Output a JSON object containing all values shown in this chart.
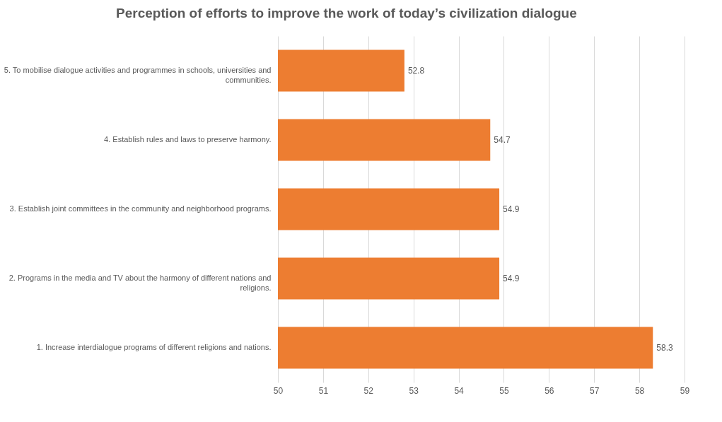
{
  "chart_data": {
    "type": "bar",
    "orientation": "horizontal",
    "title": "Perception of efforts to improve the work of today’s civilization dialogue",
    "categories": [
      "5. To mobilise dialogue activities and programmes in schools, universities and communities.",
      "4. Establish rules and laws to preserve harmony.",
      "3. Establish joint committees in the community and neighborhood programs.",
      "2. Programs in the media and TV about the harmony of different nations and religions.",
      "1. Increase interdialogue programs of different religions and nations."
    ],
    "values": [
      52.8,
      54.7,
      54.9,
      54.9,
      58.3
    ],
    "color": "#ed7d31",
    "xlim": [
      50,
      59
    ],
    "xticks": [
      50,
      51,
      52,
      53,
      54,
      55,
      56,
      57,
      58,
      59
    ],
    "grid": "x",
    "data_labels": true
  }
}
